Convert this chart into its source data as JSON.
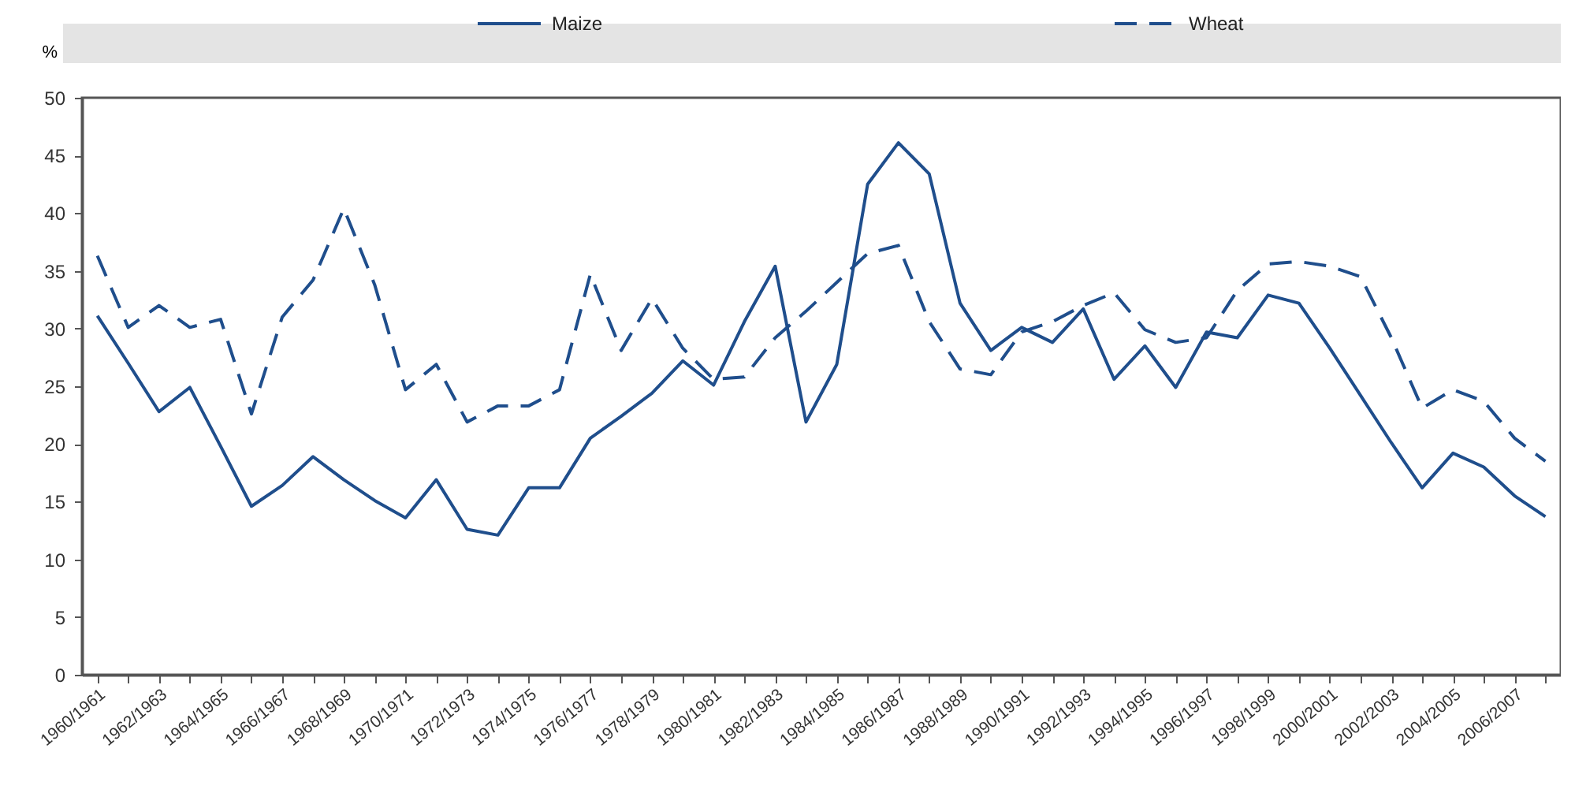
{
  "chart_data": {
    "type": "line",
    "ylabel": "%",
    "legend": "top",
    "grid": false,
    "categories": [
      "1960/1961",
      null,
      "1962/1963",
      null,
      "1964/1965",
      null,
      "1966/1967",
      null,
      "1968/1969",
      null,
      "1970/1971",
      null,
      "1972/1973",
      null,
      "1974/1975",
      null,
      "1976/1977",
      null,
      "1978/1979",
      null,
      "1980/1981",
      null,
      "1982/1983",
      null,
      "1984/1985",
      null,
      "1986/1987",
      null,
      "1988/1989",
      null,
      "1990/1991",
      null,
      "1992/1993",
      null,
      "1994/1995",
      null,
      "1996/1997",
      null,
      "1998/1999",
      null,
      "2000/2001",
      null,
      "2002/2003",
      null,
      "2004/2005",
      null,
      "2006/2007",
      null
    ],
    "ylim": [
      0,
      50
    ],
    "yticks": [
      0,
      5,
      10,
      15,
      20,
      25,
      30,
      35,
      40,
      45,
      50
    ],
    "series": [
      {
        "name": "Maize",
        "color": "#1f4e8c",
        "line_style": "solid",
        "values": [
          31.1,
          27,
          22.8,
          24.9,
          19.8,
          14.6,
          16.4,
          18.9,
          16.9,
          15.1,
          13.6,
          16.9,
          12.6,
          12.1,
          16.2,
          16.2,
          20.5,
          22.4,
          24.4,
          27.2,
          25.1,
          30.6,
          35.4,
          21.9,
          26.9,
          42.5,
          46.1,
          43.4,
          32.2,
          28.1,
          30.1,
          28.8,
          31.7,
          25.6,
          28.5,
          24.9,
          29.7,
          29.2,
          32.9,
          32.2,
          28.3,
          24.2,
          20.1,
          16.2,
          19.2,
          18,
          15.5,
          13.7
        ]
      },
      {
        "name": "Wheat",
        "color": "#1f4e8c",
        "line_style": "dashed",
        "values": [
          36.3,
          30.1,
          32,
          30.1,
          30.8,
          22.6,
          31,
          34.2,
          40.4,
          33.8,
          24.7,
          26.9,
          21.9,
          23.3,
          23.3,
          24.7,
          34.7,
          28.1,
          32.6,
          28.3,
          25.6,
          25.8,
          29.2,
          31.5,
          34,
          36.5,
          37.2,
          30.6,
          26.5,
          26,
          29.7,
          30.6,
          32,
          33.1,
          29.9,
          28.8,
          29.2,
          33.3,
          35.6,
          35.8,
          35.4,
          34.5,
          29.2,
          23.1,
          24.7,
          23.7,
          20.5,
          18.5
        ]
      }
    ]
  }
}
